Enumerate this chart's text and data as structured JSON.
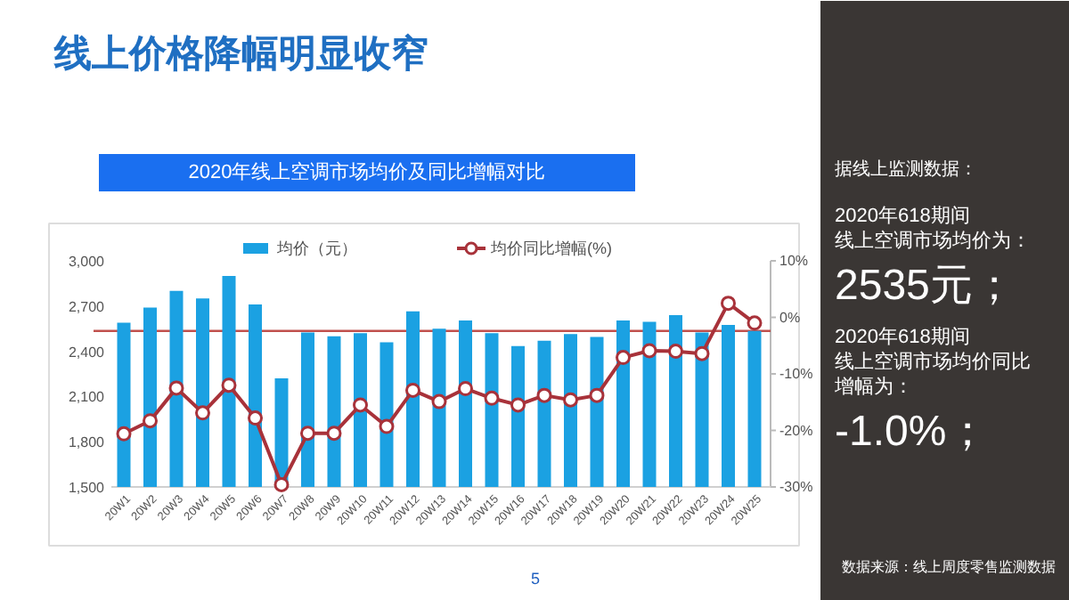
{
  "chart_data": {
    "type": "bar",
    "title": "线上价格降幅明显收窄",
    "subtitle": "2020年线上空调市场均价及同比增幅对比",
    "categories": [
      "20W1",
      "20W2",
      "20W3",
      "20W4",
      "20W5",
      "20W6",
      "20W7",
      "20W8",
      "20W9",
      "20W10",
      "20W11",
      "20W12",
      "20W13",
      "20W14",
      "20W15",
      "20W16",
      "20W17",
      "20W18",
      "20W19",
      "20W20",
      "20W21",
      "20W22",
      "20W23",
      "20W24",
      "20W25"
    ],
    "series": [
      {
        "name": "均价（元）",
        "color": "#1ba1e2",
        "values": [
          2590,
          2690,
          2800,
          2750,
          2900,
          2710,
          2220,
          2525,
          2500,
          2520,
          2460,
          2665,
          2550,
          2605,
          2520,
          2435,
          2470,
          2515,
          2495,
          2605,
          2595,
          2640,
          2525,
          2575,
          2535
        ]
      },
      {
        "name": "均价同比增幅(%)",
        "type": "line",
        "axis": "y2",
        "color": "#a8323a",
        "values": [
          -20.6,
          -18.3,
          -12.5,
          -16.9,
          -12.0,
          -17.8,
          -29.6,
          -20.5,
          -20.5,
          -15.5,
          -19.3,
          -12.9,
          -14.9,
          -12.6,
          -14.3,
          -15.5,
          -13.8,
          -14.6,
          -13.8,
          -7.1,
          -5.9,
          -6.0,
          -6.4,
          2.5,
          -1.0
        ]
      }
    ],
    "ylim": [
      1500,
      3000
    ],
    "yticks": [
      {
        "value": 1500,
        "label": "1,500"
      },
      {
        "value": 1800,
        "label": "1,800"
      },
      {
        "value": 2100,
        "label": "2,100"
      },
      {
        "value": 2400,
        "label": "2,400"
      },
      {
        "value": 2700,
        "label": "2,700"
      },
      {
        "value": 3000,
        "label": "3,000"
      }
    ],
    "y2lim": [
      -30,
      10
    ],
    "y2ticks": [
      {
        "value": -30,
        "label": "-30%"
      },
      {
        "value": -20,
        "label": "-20%"
      },
      {
        "value": -10,
        "label": "-10%"
      },
      {
        "value": 0,
        "label": "0%"
      },
      {
        "value": 10,
        "label": "10%"
      }
    ],
    "ref_lines": [
      {
        "axis": "y",
        "value": 2535,
        "label": null,
        "color": "#c0504d"
      }
    ],
    "grid": false,
    "legend": "top",
    "marker": "circle",
    "line_style": "solid",
    "annotations": [
      "5",
      "据线上监测数据：",
      "2020年618期间线上空调市场均价为：",
      "2535元；",
      "2020年618期间线上空调市场均价同比增幅为：",
      "-1.0%；",
      "数据来源：线上周度零售监测数据"
    ]
  }
}
